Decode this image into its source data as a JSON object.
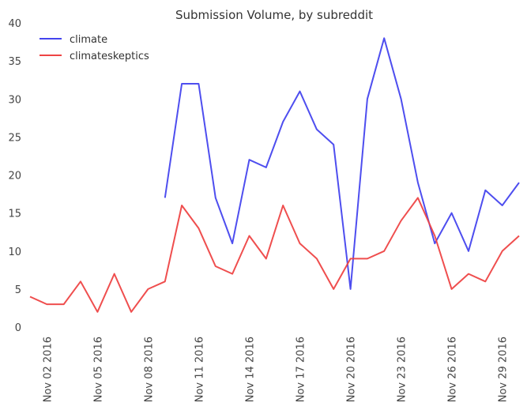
{
  "chart_data": {
    "type": "line",
    "title": "Submission Volume, by subreddit",
    "xlabel": "",
    "ylabel": "",
    "x": [
      "2016-11-01",
      "2016-11-02",
      "2016-11-03",
      "2016-11-04",
      "2016-11-05",
      "2016-11-06",
      "2016-11-07",
      "2016-11-08",
      "2016-11-09",
      "2016-11-10",
      "2016-11-11",
      "2016-11-12",
      "2016-11-13",
      "2016-11-14",
      "2016-11-15",
      "2016-11-16",
      "2016-11-17",
      "2016-11-18",
      "2016-11-19",
      "2016-11-20",
      "2016-11-21",
      "2016-11-22",
      "2016-11-23",
      "2016-11-24",
      "2016-11-25",
      "2016-11-26",
      "2016-11-27",
      "2016-11-28",
      "2016-11-29",
      "2016-11-30"
    ],
    "x_tick_labels": [
      "Nov 02 2016",
      "Nov 05 2016",
      "Nov 08 2016",
      "Nov 11 2016",
      "Nov 14 2016",
      "Nov 17 2016",
      "Nov 20 2016",
      "Nov 23 2016",
      "Nov 26 2016",
      "Nov 29 2016"
    ],
    "x_tick_dates": [
      "2016-11-02",
      "2016-11-05",
      "2016-11-08",
      "2016-11-11",
      "2016-11-14",
      "2016-11-17",
      "2016-11-20",
      "2016-11-23",
      "2016-11-26",
      "2016-11-29"
    ],
    "y_ticks": [
      0,
      5,
      10,
      15,
      20,
      25,
      30,
      35,
      40
    ],
    "ylim": [
      0,
      40
    ],
    "grid": false,
    "legend": "top-left",
    "series": [
      {
        "name": "climate",
        "color": "#4444ee",
        "values": [
          null,
          null,
          null,
          null,
          null,
          null,
          null,
          null,
          17,
          32,
          32,
          17,
          11,
          22,
          21,
          27,
          31,
          26,
          24,
          5,
          30,
          38,
          30,
          19,
          11,
          15,
          10,
          18,
          16,
          19
        ]
      },
      {
        "name": "climateskeptics",
        "color": "#ee4444",
        "values": [
          4,
          3,
          3,
          6,
          2,
          7,
          2,
          5,
          6,
          16,
          13,
          8,
          7,
          12,
          9,
          16,
          11,
          9,
          5,
          9,
          9,
          10,
          14,
          17,
          12,
          5,
          7,
          6,
          10,
          12
        ]
      }
    ]
  }
}
